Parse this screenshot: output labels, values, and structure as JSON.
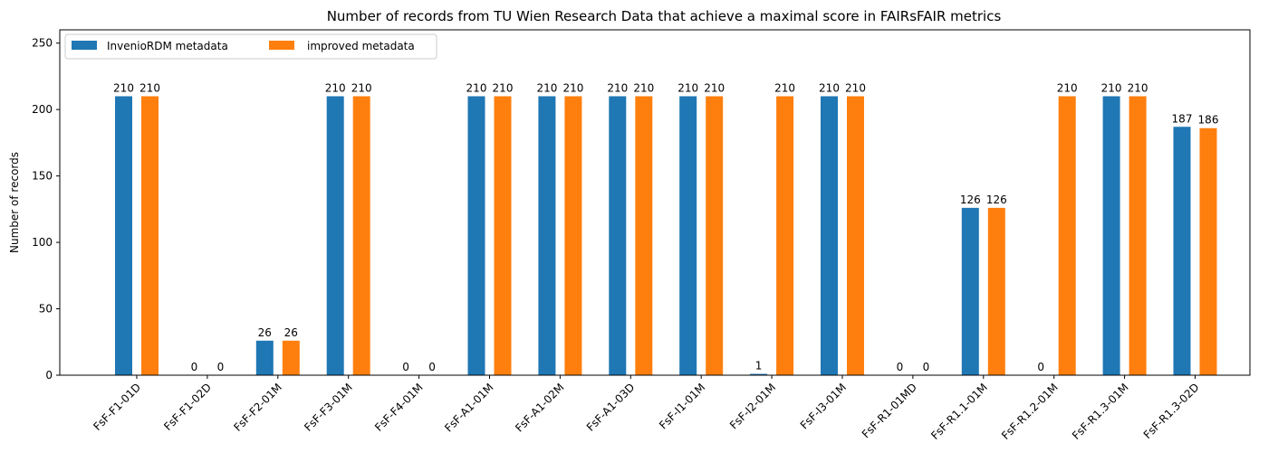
{
  "chart_data": {
    "type": "bar",
    "title": "Number of records from TU Wien Research Data that achieve a maximal score in FAIRsFAIR metrics",
    "xlabel": "",
    "ylabel": "Number of records",
    "ylim": [
      0,
      260
    ],
    "yticks": [
      0,
      50,
      100,
      150,
      200,
      250
    ],
    "grid": false,
    "legend_position": "top-left",
    "categories": [
      "FsF-F1-01D",
      "FsF-F1-02D",
      "FsF-F2-01M",
      "FsF-F3-01M",
      "FsF-F4-01M",
      "FsF-A1-01M",
      "FsF-A1-02M",
      "FsF-A1-03D",
      "FsF-I1-01M",
      "FsF-I2-01M",
      "FsF-I3-01M",
      "FsF-R1-01MD",
      "FsF-R1.1-01M",
      "FsF-R1.2-01M",
      "FsF-R1.3-01M",
      "FsF-R1.3-02D"
    ],
    "series": [
      {
        "name": "InvenioRDM metadata",
        "color": "#1f77b4",
        "values": [
          210,
          0,
          26,
          210,
          0,
          210,
          210,
          210,
          210,
          1,
          210,
          0,
          126,
          0,
          210,
          187
        ],
        "labels": [
          "210",
          "0",
          "26",
          "210",
          "0",
          "210",
          "210",
          "210",
          "210",
          "1",
          "210",
          "0",
          "126",
          "0",
          "210",
          "187"
        ]
      },
      {
        "name": "improved metadata",
        "color": "#ff7f0e",
        "values": [
          210,
          0,
          26,
          210,
          0,
          210,
          210,
          210,
          210,
          210,
          210,
          0,
          126,
          210,
          210,
          186
        ],
        "labels": [
          "210",
          "0",
          "26",
          "210",
          "0",
          "210",
          "210",
          "210",
          "210",
          "210",
          "210",
          "0",
          "126",
          "210",
          "210",
          "186"
        ]
      }
    ]
  }
}
